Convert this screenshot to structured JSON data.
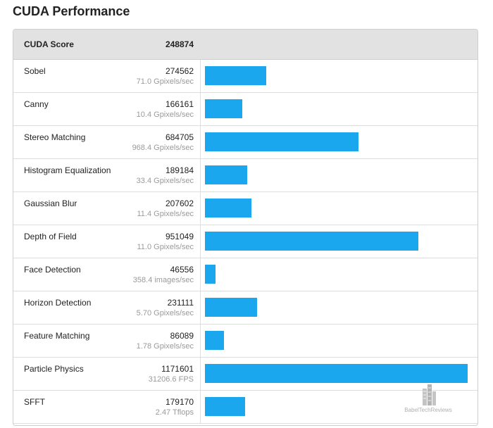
{
  "page_title": "CUDA Performance",
  "header": {
    "label": "CUDA Score",
    "value": "248874"
  },
  "chart_data": {
    "type": "bar",
    "orientation": "horizontal",
    "title": "CUDA Performance",
    "summary": {
      "label": "CUDA Score",
      "value": 248874
    },
    "categories": [
      "Sobel",
      "Canny",
      "Stereo Matching",
      "Histogram Equalization",
      "Gaussian Blur",
      "Depth of Field",
      "Face Detection",
      "Horizon Detection",
      "Feature Matching",
      "Particle Physics",
      "SFFT"
    ],
    "values": [
      274562,
      166161,
      684705,
      189184,
      207602,
      951049,
      46556,
      231111,
      86089,
      1171601,
      179170
    ],
    "rates": [
      "71.0 Gpixels/sec",
      "10.4 Gpixels/sec",
      "968.4 Gpixels/sec",
      "33.4 Gpixels/sec",
      "11.4 Gpixels/sec",
      "11.0 Gpixels/sec",
      "358.4 images/sec",
      "5.70 Gpixels/sec",
      "1.78 Gpixels/sec",
      "31206.6 FPS",
      "2.47 Tflops"
    ],
    "xlim": [
      0,
      1171601
    ],
    "bar_color": "#1aa7ee"
  },
  "watermark": {
    "text": "BabelTechReviews"
  }
}
